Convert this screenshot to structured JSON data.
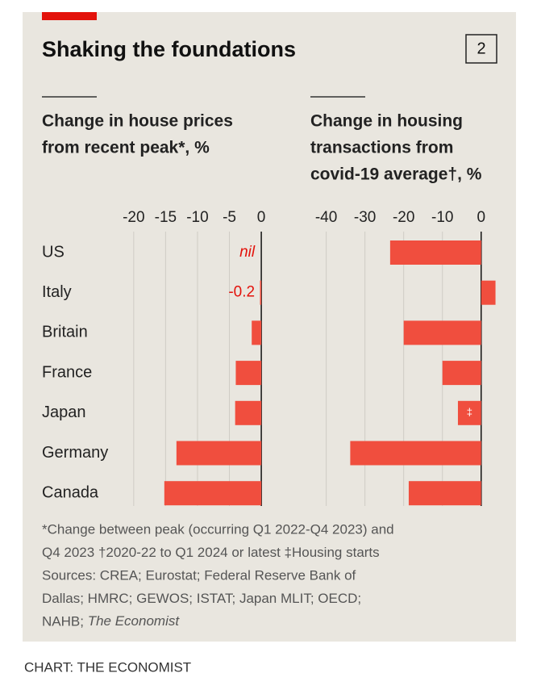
{
  "header": {
    "title": "Shaking the foundations",
    "chart_number": "2"
  },
  "chart_data": [
    {
      "type": "bar",
      "orientation": "horizontal",
      "subtitle": [
        "Change in house prices",
        "from recent peak*, %"
      ],
      "categories": [
        "US",
        "Italy",
        "Britain",
        "France",
        "Japan",
        "Germany",
        "Canada"
      ],
      "values": [
        0,
        -0.2,
        -1.5,
        -4,
        -4.1,
        -13.3,
        -15.2
      ],
      "value_labels": [
        "nil",
        "-0.2",
        null,
        null,
        null,
        null,
        null
      ],
      "xlim": [
        -22,
        1
      ],
      "xticks": [
        -20,
        -15,
        -10,
        -5,
        0
      ],
      "color": "#f04e3e",
      "grid": true
    },
    {
      "type": "bar",
      "orientation": "horizontal",
      "subtitle": [
        "Change in housing",
        "transactions from",
        "covid-19 average†, %"
      ],
      "values": [
        -23.5,
        3.7,
        -20,
        -10,
        -6,
        -33.8,
        -18.7
      ],
      "value_labels": [
        null,
        null,
        null,
        null,
        "‡",
        null,
        null
      ],
      "xlim": [
        -42,
        4
      ],
      "xticks": [
        -40,
        -30,
        -20,
        -10,
        0
      ],
      "color": "#f04e3e",
      "grid": true
    }
  ],
  "footer": {
    "notes": [
      "*Change between peak (occurring Q1 2022-Q4 2023) and",
      "Q4 2023  †2020-22 to Q1 2024 or latest  ‡Housing starts",
      "Sources: CREA; Eurostat; Federal Reserve Bank of",
      "Dallas; HMRC; GEWOS; ISTAT; Japan MLIT; OECD;",
      "NAHB; "
    ],
    "source_italic": "The Economist",
    "credit": "CHART: THE ECONOMIST"
  }
}
